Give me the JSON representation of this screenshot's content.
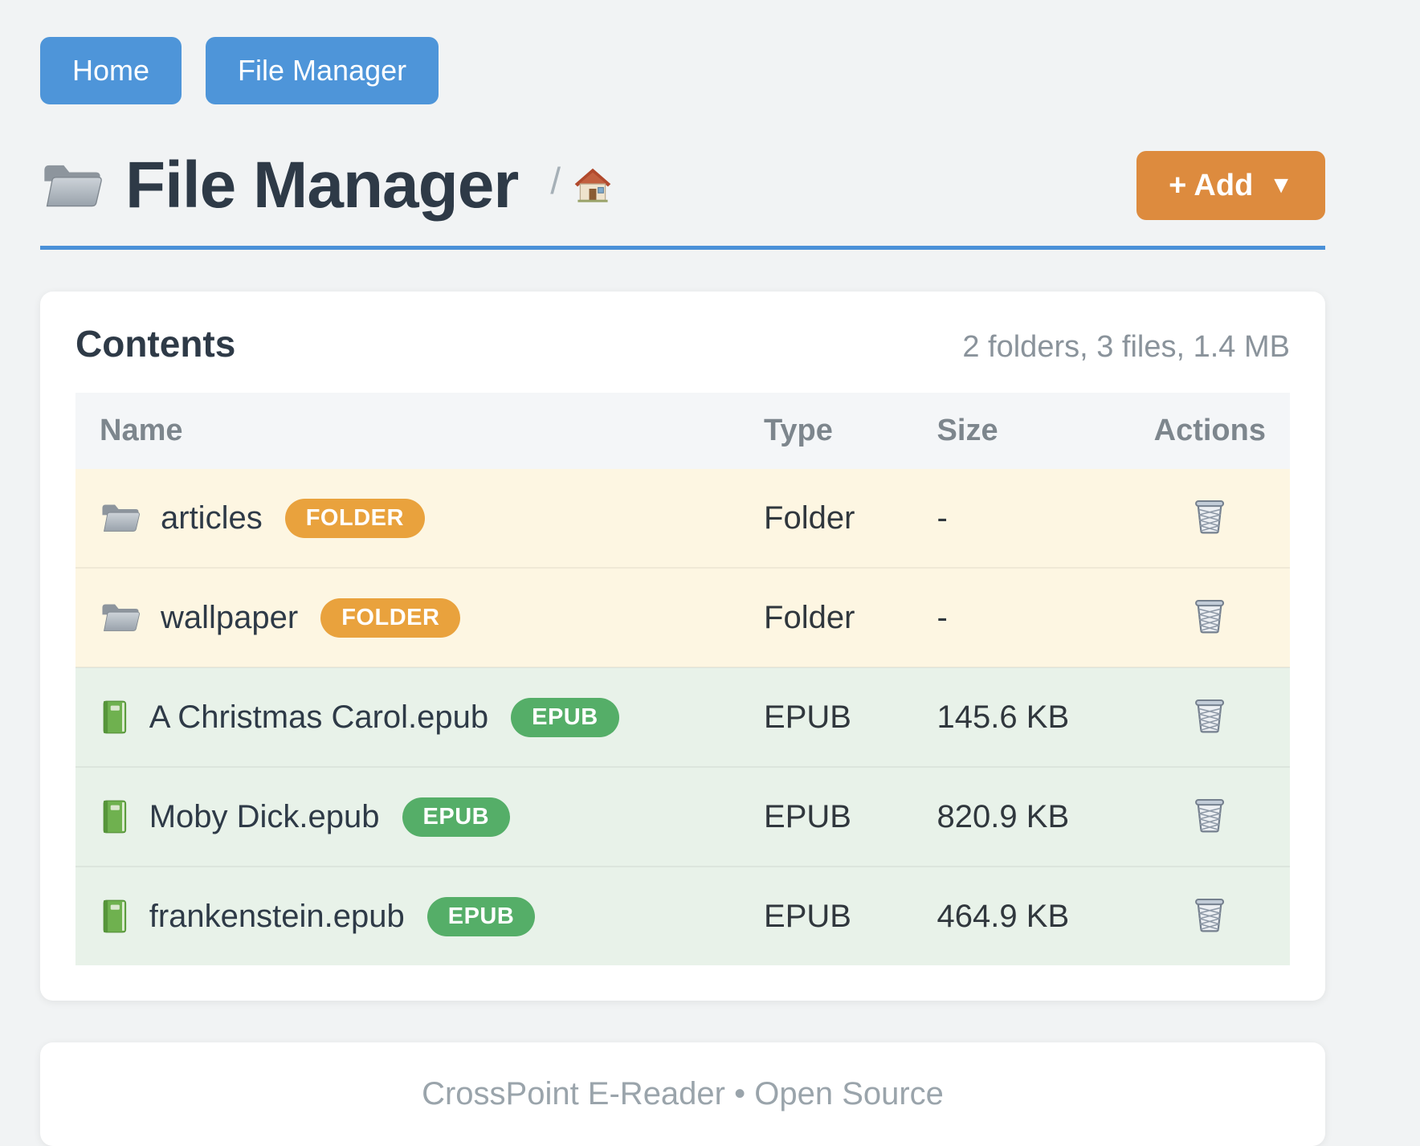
{
  "colors": {
    "page_bg": "#f1f3f4",
    "accent_blue": "#4e95d9",
    "rule_blue": "#4a90d8",
    "accent_orange": "#dd8b3e",
    "badge_orange": "#e9a23d",
    "badge_green": "#55ae68",
    "row_folder_bg": "#fdf6e2",
    "row_epub_bg": "#e8f2e9",
    "heading_text": "#2e3a47",
    "body_text": "#30373d",
    "muted_text": "#8a939b",
    "table_header_text": "#7d868d",
    "table_header_bg": "#f4f6f8",
    "footer_text": "#9aa4ab"
  },
  "nav": {
    "buttons": [
      {
        "label": "Home"
      },
      {
        "label": "File Manager"
      }
    ]
  },
  "header": {
    "icon": "folder-icon",
    "title": "File Manager",
    "breadcrumb": {
      "separator": "/",
      "icon": "house-icon"
    },
    "add_button": {
      "label": "+ Add",
      "caret": "▼"
    }
  },
  "contents": {
    "heading": "Contents",
    "summary": "2 folders, 3 files, 1.4 MB",
    "table": {
      "columns": [
        "Name",
        "Type",
        "Size",
        "Actions"
      ],
      "rows": [
        {
          "icon": "folder-icon",
          "name": "articles",
          "badge": "FOLDER",
          "badge_color": "#e9a23d",
          "kind": "folder",
          "type": "Folder",
          "size": "-",
          "action_icon": "trash-icon"
        },
        {
          "icon": "folder-icon",
          "name": "wallpaper",
          "badge": "FOLDER",
          "badge_color": "#e9a23d",
          "kind": "folder",
          "type": "Folder",
          "size": "-",
          "action_icon": "trash-icon"
        },
        {
          "icon": "book-icon",
          "name": "A Christmas Carol.epub",
          "badge": "EPUB",
          "badge_color": "#55ae68",
          "kind": "epub",
          "type": "EPUB",
          "size": "145.6 KB",
          "action_icon": "trash-icon"
        },
        {
          "icon": "book-icon",
          "name": "Moby Dick.epub",
          "badge": "EPUB",
          "badge_color": "#55ae68",
          "kind": "epub",
          "type": "EPUB",
          "size": "820.9 KB",
          "action_icon": "trash-icon"
        },
        {
          "icon": "book-icon",
          "name": "frankenstein.epub",
          "badge": "EPUB",
          "badge_color": "#55ae68",
          "kind": "epub",
          "type": "EPUB",
          "size": "464.9 KB",
          "action_icon": "trash-icon"
        }
      ]
    }
  },
  "footer": {
    "text": "CrossPoint E-Reader • Open Source"
  }
}
